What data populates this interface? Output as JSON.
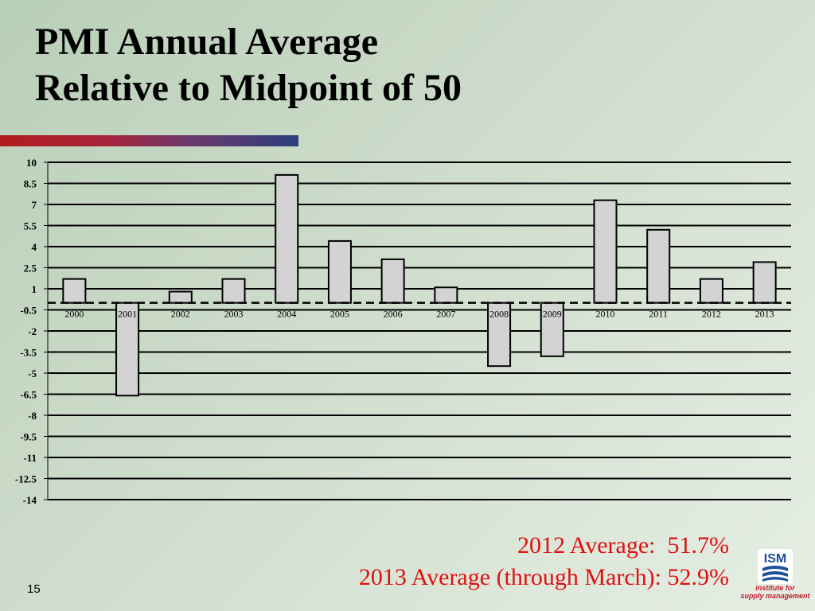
{
  "slide": {
    "title_line1": "PMI Annual Average",
    "title_line2": "Relative to Midpoint of 50",
    "caption_line1": "2012 Average:  51.7%",
    "caption_line2": "2013 Average (through March): 52.9%",
    "page_number": "15",
    "logo": {
      "mark_text": "ISM",
      "tagline_line1": "institute for",
      "tagline_line2": "supply management"
    },
    "colors": {
      "caption": "#e01010",
      "accent_red": "#b01e1e",
      "accent_blue": "#2a3f7a",
      "logo_blue": "#1d4e9e",
      "logo_red": "#c01b2a"
    }
  },
  "chart_data": {
    "type": "bar",
    "title": "",
    "xlabel": "",
    "ylabel": "",
    "categories": [
      "2000",
      "2001",
      "2002",
      "2003",
      "2004",
      "2005",
      "2006",
      "2007",
      "2008",
      "2009",
      "2010",
      "2011",
      "2012",
      "2013"
    ],
    "values": [
      1.7,
      -6.6,
      0.8,
      1.7,
      9.1,
      4.4,
      3.1,
      1.1,
      -4.5,
      -3.8,
      7.3,
      5.2,
      1.7,
      2.9
    ],
    "ylim": [
      -14,
      10
    ],
    "yticks": [
      "10",
      "8.5",
      "7",
      "5.5",
      "4",
      "2.5",
      "1",
      "-0.5",
      "-2",
      "-3.5",
      "-5",
      "-6.5",
      "-8",
      "-9.5",
      "-11",
      "-12.5",
      "-14"
    ],
    "grid": true,
    "legend": "none",
    "bar_color": "#d3d3d3"
  }
}
